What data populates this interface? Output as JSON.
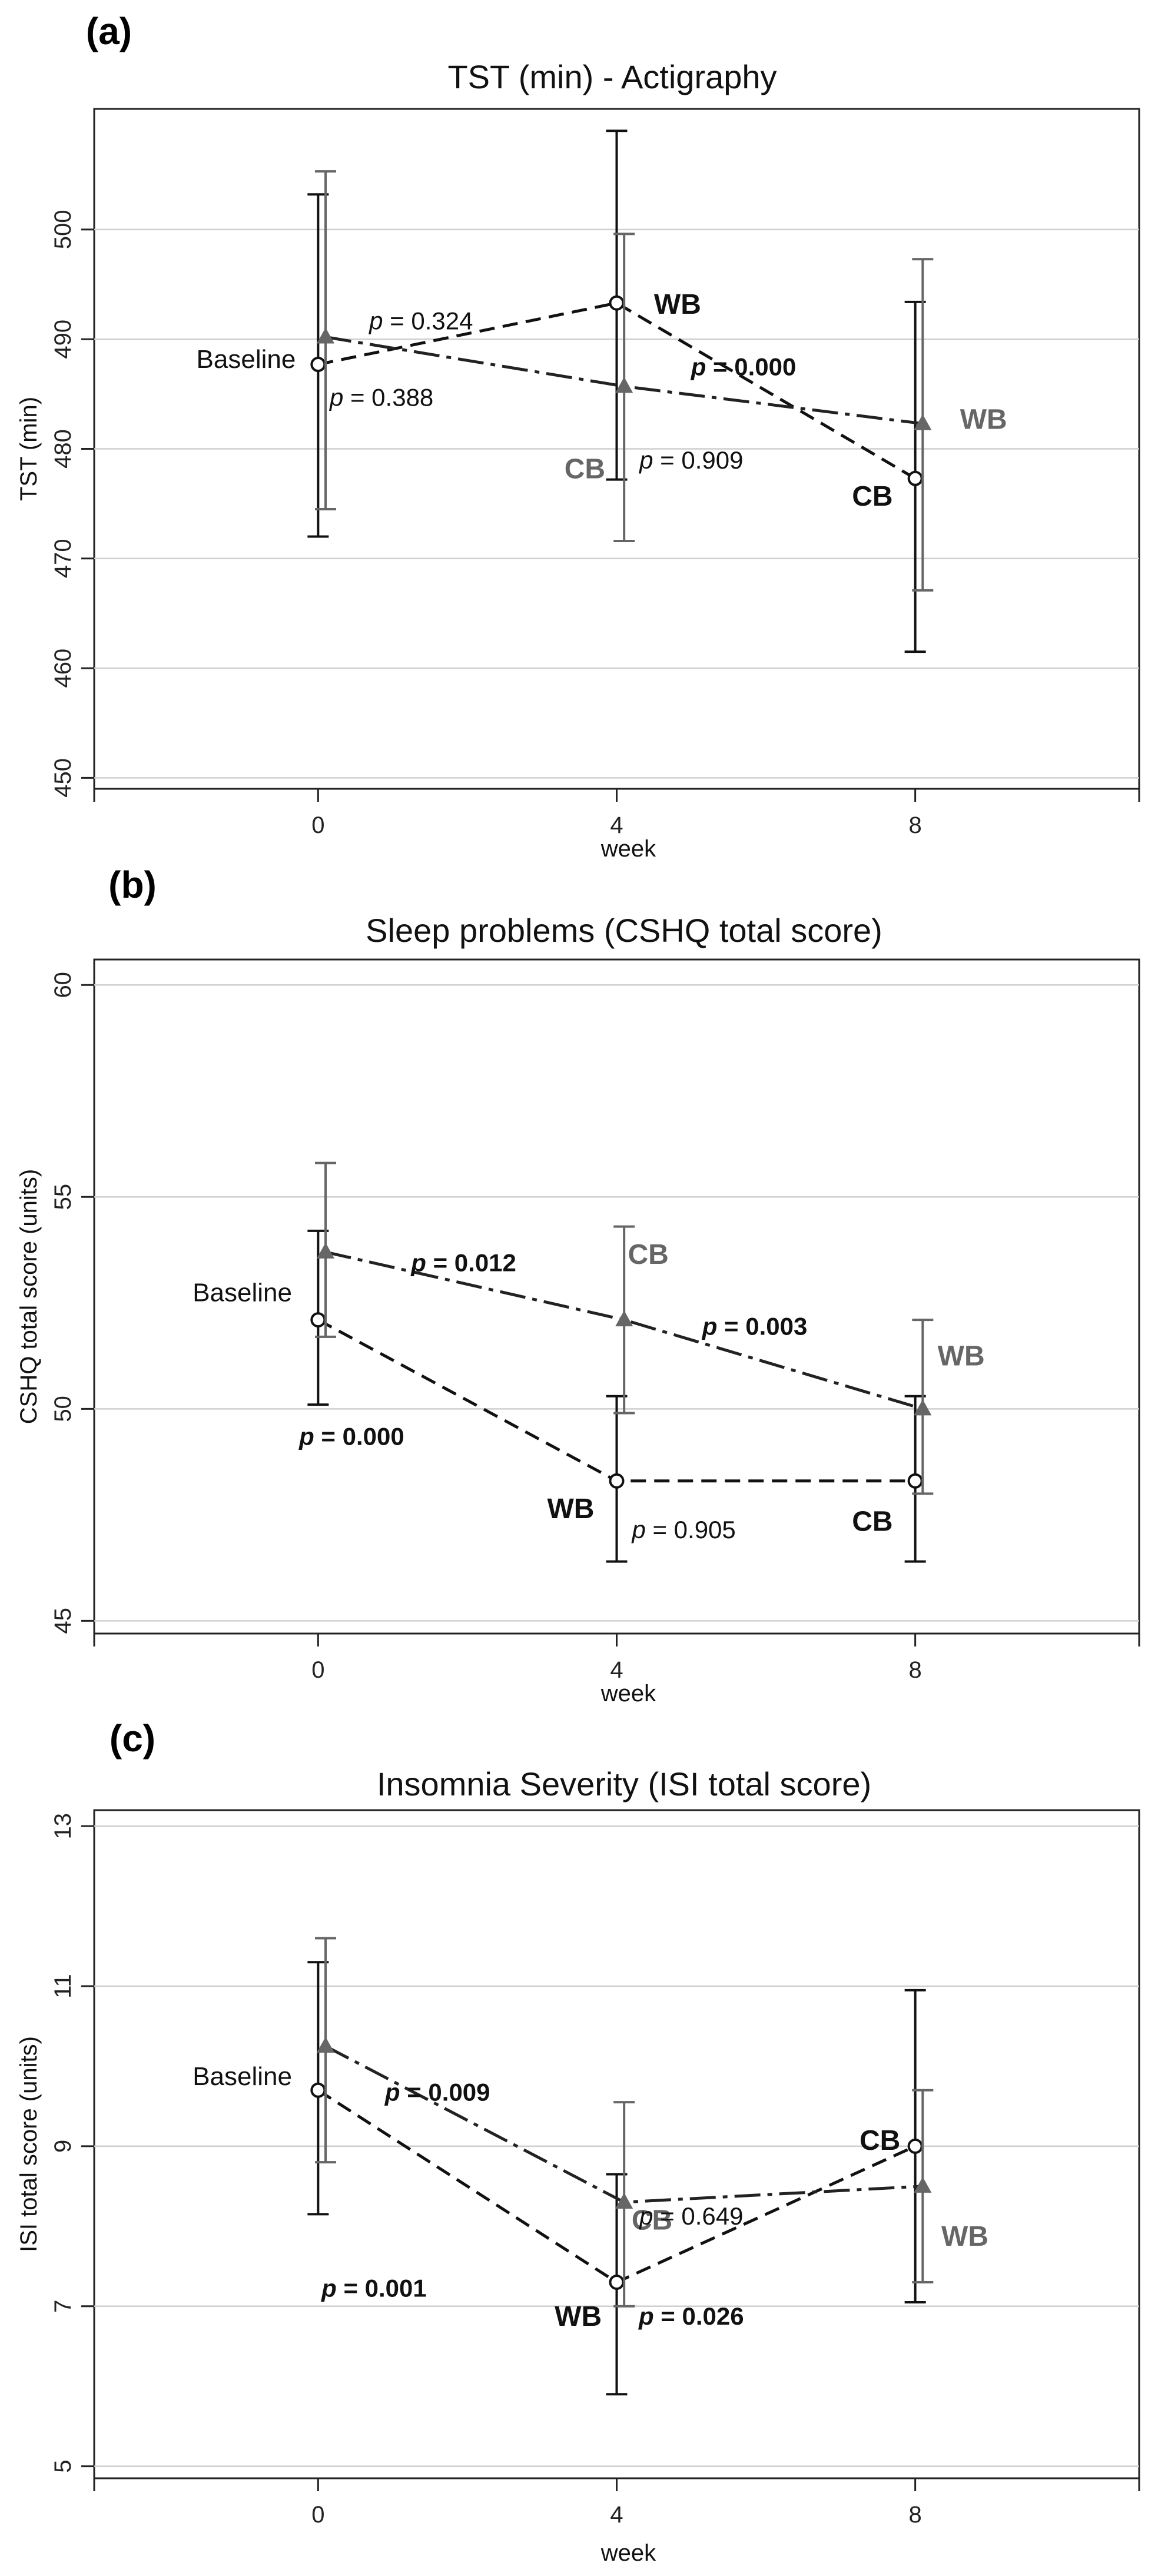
{
  "chart_data": [
    {
      "panel_label": "(a)",
      "type": "line",
      "title": "TST (min) - Actigraphy",
      "xlabel": "week",
      "ylabel": "TST (min)",
      "x_ticks": [
        "0",
        "4",
        "8"
      ],
      "y_ticks": [
        "450",
        "460",
        "470",
        "480",
        "490",
        "500"
      ],
      "xlim": [
        -3,
        11
      ],
      "ylim": [
        449,
        511
      ],
      "grid": true,
      "series": [
        {
          "style": "dashed",
          "color": "#111111",
          "marker": "circle",
          "points": [
            {
              "x": 0,
              "y": 487.7,
              "lo": 472.0,
              "hi": 503.2
            },
            {
              "x": 4,
              "y": 493.3,
              "lo": 477.2,
              "hi": 509.0
            },
            {
              "x": 8,
              "y": 477.3,
              "lo": 461.5,
              "hi": 493.4
            }
          ]
        },
        {
          "style": "dashdot",
          "color": "#666666",
          "marker": "triangle",
          "points": [
            {
              "x": 0.1,
              "y": 490.2,
              "lo": 474.5,
              "hi": 505.3
            },
            {
              "x": 4.1,
              "y": 485.7,
              "lo": 471.6,
              "hi": 499.6
            },
            {
              "x": 8.1,
              "y": 482.3,
              "lo": 467.1,
              "hi": 497.3
            }
          ]
        }
      ],
      "annotations": [
        {
          "text": "Baseline",
          "x": -0.3,
          "y": 488,
          "anchor": "end",
          "color": "#111111",
          "weight": "normal"
        },
        {
          "text": "WB",
          "x": 4.5,
          "y": 493,
          "anchor": "start",
          "color": "#111111",
          "weight": "bold"
        },
        {
          "text": "CB",
          "x": 3.3,
          "y": 478,
          "anchor": "start",
          "color": "#666666",
          "weight": "bold",
          "note": ""
        },
        {
          "text": "WB",
          "x": 8.6,
          "y": 482.5,
          "anchor": "start",
          "color": "#666666",
          "weight": "bold"
        },
        {
          "text": "CB",
          "x": 7.7,
          "y": 475.5,
          "anchor": "end",
          "color": "#111111",
          "weight": "bold"
        }
      ],
      "pvalues": [
        {
          "p": "p",
          "rest": " = 0.324",
          "x": 1.38,
          "y": 491.5,
          "bold": false
        },
        {
          "p": "p",
          "rest": " = 0.388",
          "x": 0.85,
          "y": 484.5,
          "bold": false
        },
        {
          "p": "p",
          "rest": " = 0.000",
          "x": 5.7,
          "y": 487.3,
          "bold": true
        },
        {
          "p": "p",
          "rest": " = 0.909",
          "x": 5.0,
          "y": 478.8,
          "bold": false
        }
      ]
    },
    {
      "panel_label": "(b)",
      "type": "line",
      "title": "Sleep problems (CSHQ total score)",
      "xlabel": "week",
      "ylabel": "CSHQ total score (units)",
      "x_ticks": [
        "0",
        "4",
        "8"
      ],
      "y_ticks": [
        "45",
        "50",
        "55",
        "60"
      ],
      "xlim": [
        -3,
        11
      ],
      "ylim": [
        44.7,
        60.6
      ],
      "grid": true,
      "series": [
        {
          "style": "dashed",
          "color": "#111111",
          "marker": "circle",
          "points": [
            {
              "x": 0,
              "y": 52.1,
              "lo": 50.1,
              "hi": 54.2
            },
            {
              "x": 4,
              "y": 48.3,
              "lo": 46.4,
              "hi": 50.3
            },
            {
              "x": 8,
              "y": 48.3,
              "lo": 46.4,
              "hi": 50.3
            }
          ]
        },
        {
          "style": "dashdot",
          "color": "#666666",
          "marker": "triangle",
          "points": [
            {
              "x": 0.1,
              "y": 53.7,
              "lo": 51.7,
              "hi": 55.8
            },
            {
              "x": 4.1,
              "y": 52.1,
              "lo": 49.9,
              "hi": 54.3
            },
            {
              "x": 8.1,
              "y": 50.0,
              "lo": 48.0,
              "hi": 52.1
            }
          ]
        }
      ],
      "annotations": [
        {
          "text": "Baseline",
          "x": -0.35,
          "y": 52.7,
          "anchor": "end",
          "color": "#111111",
          "weight": "normal"
        },
        {
          "text": "CB",
          "x": 4.15,
          "y": 53.6,
          "anchor": "start",
          "color": "#666666",
          "weight": "bold"
        },
        {
          "text": "WB",
          "x": 3.7,
          "y": 47.6,
          "anchor": "end",
          "color": "#111111",
          "weight": "bold"
        },
        {
          "text": "WB",
          "x": 8.3,
          "y": 51.2,
          "anchor": "start",
          "color": "#666666",
          "weight": "bold"
        },
        {
          "text": "CB",
          "x": 7.7,
          "y": 47.3,
          "anchor": "end",
          "color": "#111111",
          "weight": "bold"
        }
      ],
      "pvalues": [
        {
          "p": "p",
          "rest": " = 0.012",
          "x": 1.95,
          "y": 53.4,
          "bold": true
        },
        {
          "p": "p",
          "rest": " = 0.003",
          "x": 5.85,
          "y": 51.9,
          "bold": true
        },
        {
          "p": "p",
          "rest": " = 0.000",
          "x": 0.45,
          "y": 49.3,
          "bold": true
        },
        {
          "p": "p",
          "rest": " = 0.905",
          "x": 4.9,
          "y": 47.1,
          "bold": false
        }
      ]
    },
    {
      "panel_label": "(c)",
      "type": "line",
      "title": "Insomnia Severity (ISI total score)",
      "xlabel": "week",
      "ylabel": "ISI total score (units)",
      "x_ticks": [
        "0",
        "4",
        "8"
      ],
      "y_ticks": [
        "5",
        "7",
        "9",
        "11",
        "13"
      ],
      "xlim": [
        -3,
        11
      ],
      "ylim": [
        4.85,
        13.2
      ],
      "grid": true,
      "series": [
        {
          "style": "dashed",
          "color": "#111111",
          "marker": "circle",
          "points": [
            {
              "x": 0,
              "y": 9.7,
              "lo": 8.15,
              "hi": 11.3
            },
            {
              "x": 4,
              "y": 7.3,
              "lo": 5.9,
              "hi": 8.65
            },
            {
              "x": 8,
              "y": 9.0,
              "lo": 7.05,
              "hi": 10.95
            }
          ]
        },
        {
          "style": "dashdot",
          "color": "#666666",
          "marker": "triangle",
          "points": [
            {
              "x": 0.1,
              "y": 10.25,
              "lo": 8.8,
              "hi": 11.6
            },
            {
              "x": 4.1,
              "y": 8.3,
              "lo": 7.0,
              "hi": 9.55
            },
            {
              "x": 8.1,
              "y": 8.5,
              "lo": 7.3,
              "hi": 9.7
            }
          ]
        }
      ],
      "annotations": [
        {
          "text": "Baseline",
          "x": -0.35,
          "y": 9.85,
          "anchor": "end",
          "color": "#111111",
          "weight": "normal"
        },
        {
          "text": "CB",
          "x": 4.2,
          "y": 8.05,
          "anchor": "start",
          "color": "#666666",
          "weight": "bold"
        },
        {
          "text": "WB",
          "x": 3.8,
          "y": 6.85,
          "anchor": "end",
          "color": "#111111",
          "weight": "bold"
        },
        {
          "text": "CB",
          "x": 7.8,
          "y": 9.05,
          "anchor": "end",
          "color": "#111111",
          "weight": "bold"
        },
        {
          "text": "WB",
          "x": 8.35,
          "y": 7.85,
          "anchor": "start",
          "color": "#666666",
          "weight": "bold"
        }
      ],
      "pvalues": [
        {
          "p": "p",
          "rest": " = 0.009",
          "x": 1.6,
          "y": 9.65,
          "bold": true
        },
        {
          "p": "p",
          "rest": " = 0.001",
          "x": 0.75,
          "y": 7.2,
          "bold": true
        },
        {
          "p": "p",
          "rest": " = 0.649",
          "x": 5.0,
          "y": 8.1,
          "bold": false
        },
        {
          "p": "p",
          "rest": " = 0.026",
          "x": 5.0,
          "y": 6.85,
          "bold": true
        }
      ]
    }
  ]
}
